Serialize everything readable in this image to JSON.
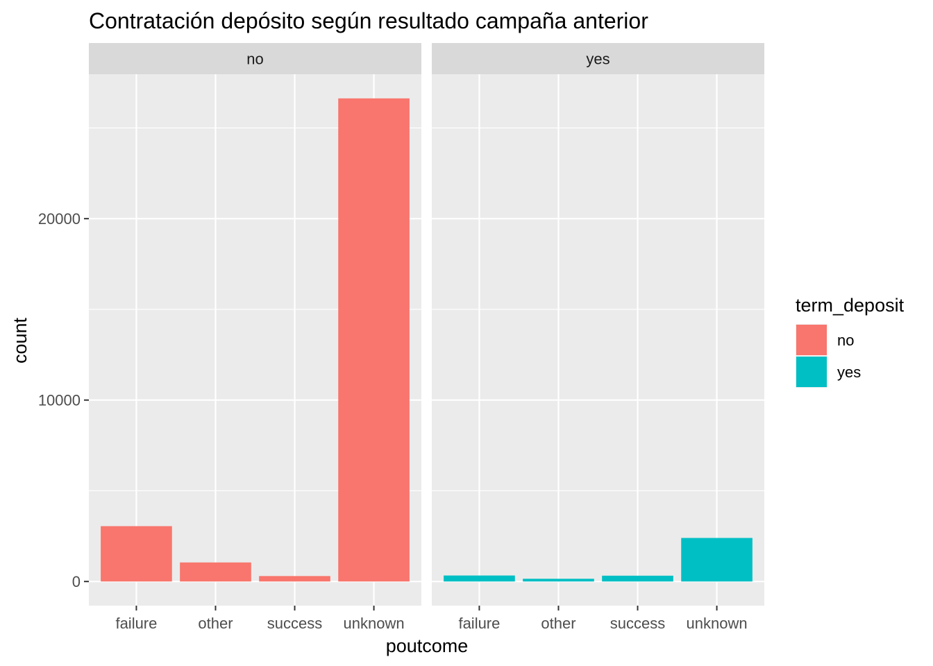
{
  "chart_data": {
    "type": "bar",
    "title": "Contratación depósito según resultado campaña anterior",
    "xlabel": "poutcome",
    "ylabel": "count",
    "categories": [
      "failure",
      "other",
      "success",
      "unknown"
    ],
    "ylim": [
      -1331,
      27961
    ],
    "yticks": [
      0,
      10000,
      20000
    ],
    "grid": true,
    "facet_variable": "term_deposit",
    "facets": [
      {
        "label": "no",
        "values": [
          3050,
          1050,
          300,
          26630
        ],
        "color": "#F8766D"
      },
      {
        "label": "yes",
        "values": [
          330,
          150,
          320,
          2400
        ],
        "color": "#00BFC4"
      }
    ],
    "legend": {
      "title": "term_deposit",
      "position": "right",
      "entries": [
        {
          "label": "no",
          "color": "#F8766D"
        },
        {
          "label": "yes",
          "color": "#00BFC4"
        }
      ]
    },
    "colors": {
      "panel_bg": "#EBEBEB",
      "strip_bg": "#D9D9D9",
      "grid": "#FFFFFF"
    }
  }
}
